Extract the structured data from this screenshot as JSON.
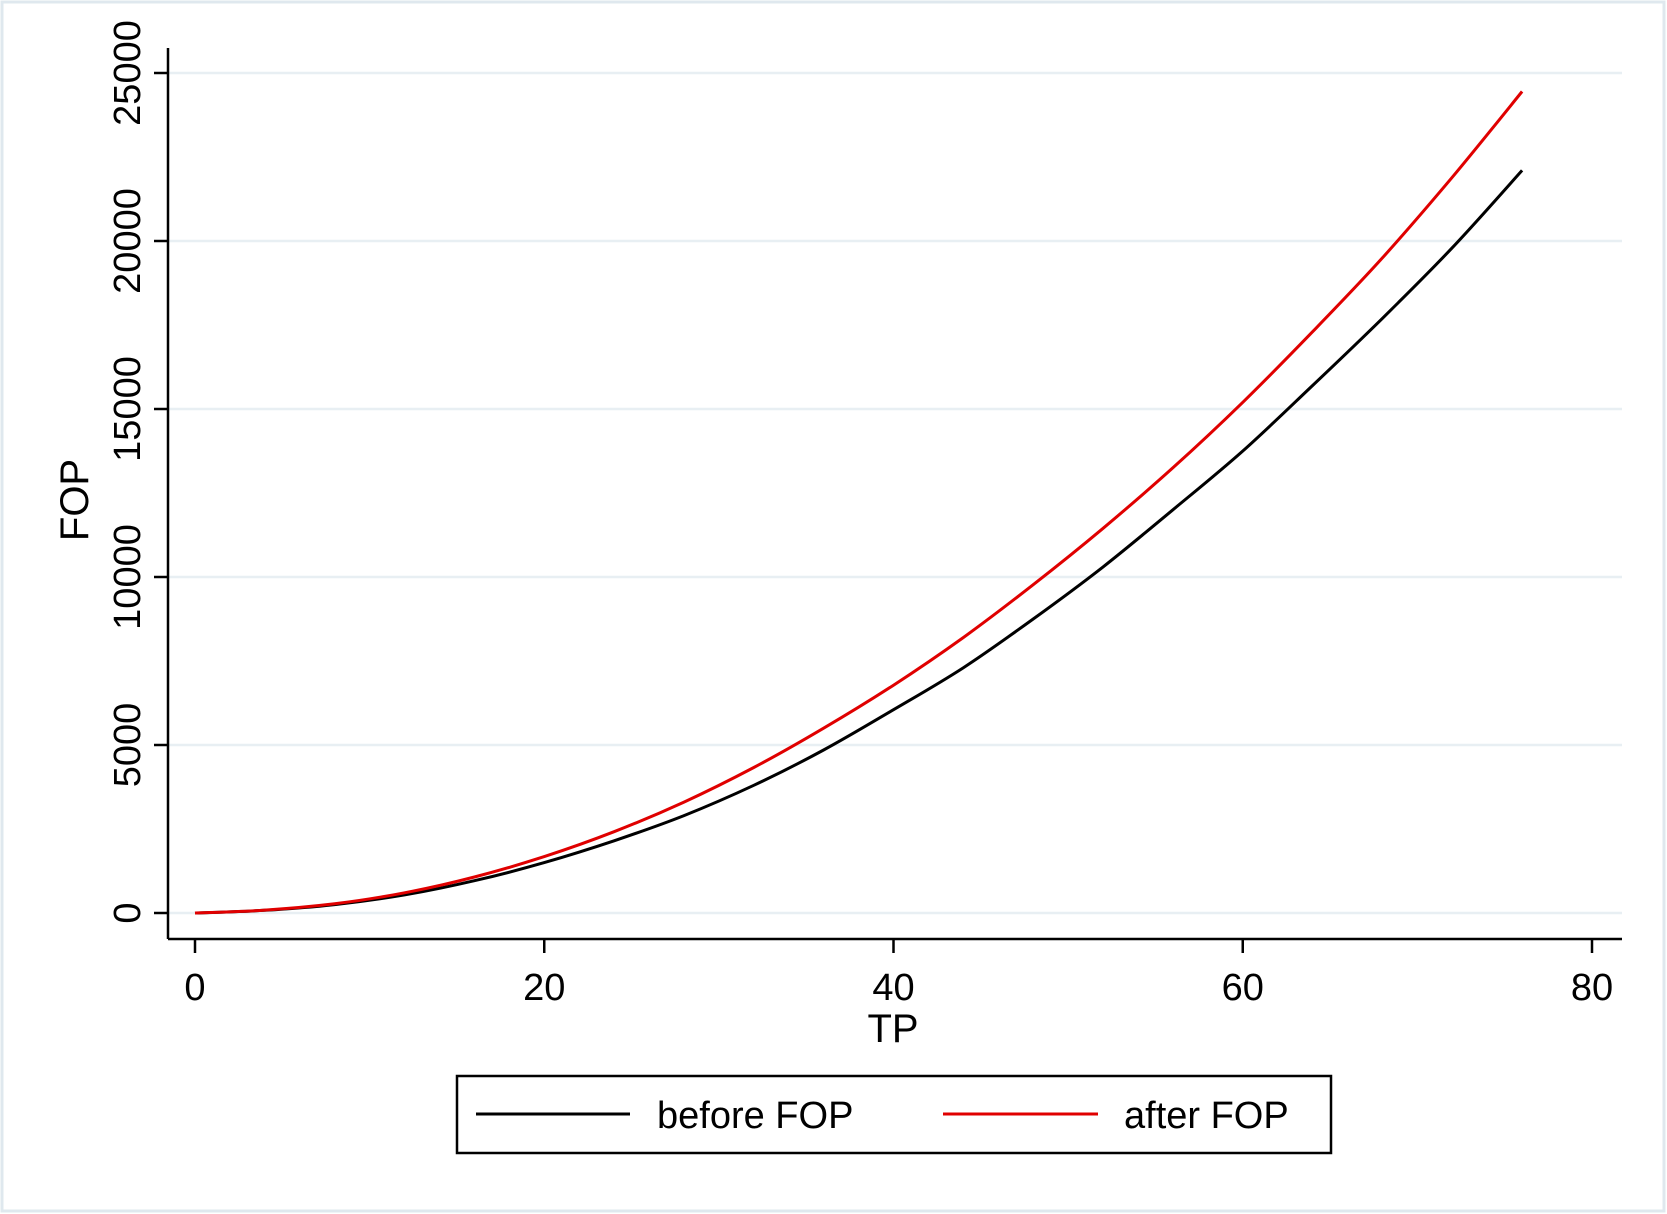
{
  "chart_data": {
    "type": "line",
    "title": "",
    "xlabel": "TP",
    "ylabel": "FOP",
    "xlim": [
      0,
      80
    ],
    "ylim": [
      0,
      25000
    ],
    "xticks": [
      0,
      20,
      40,
      60,
      80
    ],
    "yticks": [
      0,
      5000,
      10000,
      15000,
      20000,
      25000
    ],
    "xtick_labels": [
      "0",
      "20",
      "40",
      "60",
      "80"
    ],
    "ytick_labels": [
      "0",
      "5000",
      "10000",
      "15000",
      "20000",
      "25000"
    ],
    "grid": "horizontal",
    "legend_position": "bottom",
    "x": [
      0,
      4,
      8,
      12,
      16,
      20,
      24,
      28,
      32,
      36,
      40,
      44,
      48,
      52,
      56,
      60,
      64,
      68,
      72,
      76
    ],
    "series": [
      {
        "name": "before FOP",
        "color": "#000000",
        "values": [
          0,
          80,
          250,
          540,
          960,
          1500,
          2150,
          2900,
          3800,
          4850,
          6050,
          7300,
          8750,
          10300,
          12000,
          13750,
          15700,
          17700,
          19800,
          22100
        ]
      },
      {
        "name": "after FOP",
        "color": "#e00000",
        "values": [
          0,
          85,
          275,
          600,
          1070,
          1680,
          2420,
          3300,
          4330,
          5500,
          6780,
          8200,
          9770,
          11450,
          13250,
          15200,
          17300,
          19500,
          21900,
          24450
        ]
      }
    ]
  }
}
